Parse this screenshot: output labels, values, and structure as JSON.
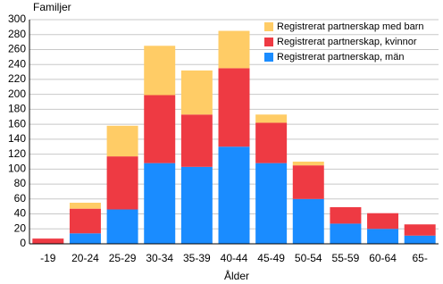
{
  "chart_data": {
    "type": "stacked-bar",
    "y_label": "Familjer",
    "x_label": "Ålder",
    "categories": [
      "-19",
      "20-24",
      "25-29",
      "30-34",
      "35-39",
      "40-44",
      "45-49",
      "50-54",
      "55-59",
      "60-64",
      "65-"
    ],
    "series": [
      {
        "name": "Registrerat partnerskap, män",
        "color": "#1a8cff",
        "values": [
          0,
          14,
          46,
          108,
          103,
          130,
          108,
          60,
          27,
          20,
          11
        ]
      },
      {
        "name": "Registrerat partnerskap, kvinnor",
        "color": "#ee3a43",
        "values": [
          7,
          33,
          71,
          91,
          70,
          105,
          54,
          45,
          22,
          21,
          15
        ]
      },
      {
        "name": "Registrerat partnerskap med barn",
        "color": "#ffcc66",
        "values": [
          0,
          8,
          41,
          66,
          59,
          50,
          11,
          5,
          0,
          0,
          0
        ]
      }
    ],
    "ylim": [
      0,
      300
    ],
    "yticks": [
      0,
      20,
      40,
      60,
      80,
      100,
      120,
      140,
      160,
      180,
      200,
      220,
      240,
      260,
      280,
      300
    ],
    "grid": true,
    "legend": "top-right"
  }
}
